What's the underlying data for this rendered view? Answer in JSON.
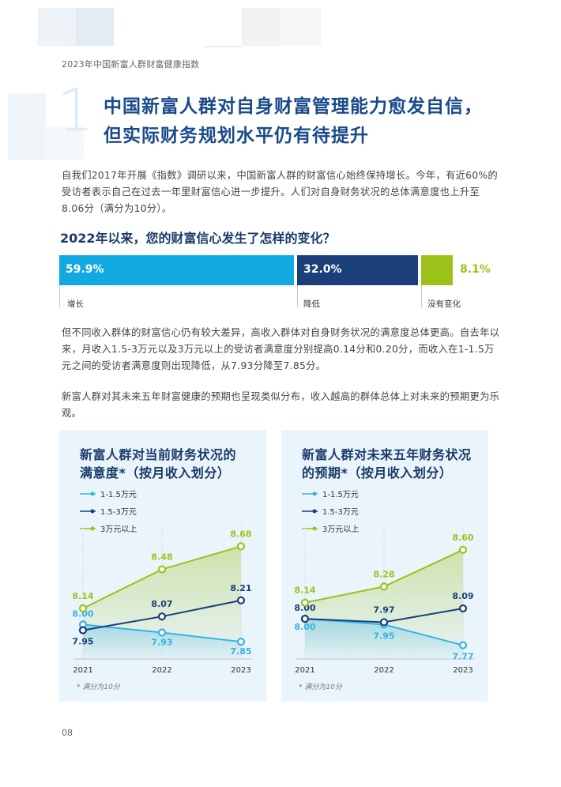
{
  "header": "2023年中国新富人群财富健康指数",
  "section_number": "1",
  "title_lines": [
    "中国新富人群对自身财富管理能力愈发自信，",
    "但实际财务规划水平仍有待提升"
  ],
  "paragraphs": [
    "自我们2017年开展《指数》调研以来，中国新富人群的财富信心始终保持增长。今年，有近60%的受访者表示自己在过去一年里财富信心进一步提升。人们对自身财务状况的总体满意度也上升至8.06分（满分为10分）。",
    "但不同收入群体的财富信心仍有较大差异，高收入群体对自身财务状况的满意度总体更高。自去年以来，月收入1.5-3万元以及3万元以上的受访者满意度分别提高0.14分和0.20分，而收入在1-1.5万元之间的受访者满意度则出现降低，从7.93分降至7.85分。",
    "新富人群对其未来五年财富健康的预期也呈现类似分布，收入越高的群体总体上对未来的预期更为乐观。"
  ],
  "confidence": {
    "question": "2022年以来，您的财富信心发生了怎样的变化？",
    "segments": [
      {
        "value": 59.9,
        "display": "59.9%",
        "label": "增长",
        "color": "#12a8e2"
      },
      {
        "value": 32.0,
        "display": "32.0%",
        "label": "降低",
        "color": "#1a3f7a"
      },
      {
        "value": 8.1,
        "display": "8.1%",
        "label": "没有变化",
        "color": "#9cc21a"
      }
    ]
  },
  "chart_data": [
    {
      "type": "line",
      "title_lines": [
        "新富人群对当前财务状况的",
        "满意度*（按月收入划分）"
      ],
      "categories": [
        "2021",
        "2022",
        "2023"
      ],
      "series": [
        {
          "name": "1-1.5万元",
          "values": [
            8.0,
            7.93,
            7.85
          ],
          "labels": [
            "8.00",
            "7.93",
            "7.85"
          ],
          "color": "#35b3e6"
        },
        {
          "name": "1.5-3万元",
          "values": [
            7.95,
            8.07,
            8.21
          ],
          "labels": [
            "7.95",
            "8.07",
            "8.21"
          ],
          "color": "#1a3f7a"
        },
        {
          "name": "3万元以上",
          "values": [
            8.14,
            8.48,
            8.68
          ],
          "labels": [
            "8.14",
            "8.48",
            "8.68"
          ],
          "color": "#9cc21a"
        }
      ],
      "ylim": [
        7.7,
        8.8
      ],
      "footnote": "* 满分为10分"
    },
    {
      "type": "line",
      "title_lines": [
        "新富人群对未来五年财务状况",
        "的预期*（按月收入划分）"
      ],
      "categories": [
        "2021",
        "2022",
        "2023"
      ],
      "series": [
        {
          "name": "1-1.5万元",
          "values": [
            8.0,
            7.95,
            7.77
          ],
          "labels": [
            "8.00",
            "7.95",
            "7.77"
          ],
          "color": "#35b3e6"
        },
        {
          "name": "1.5-3万元",
          "values": [
            8.0,
            7.97,
            8.09
          ],
          "labels": [
            "8.00",
            "7.97",
            "8.09"
          ],
          "color": "#1a3f7a"
        },
        {
          "name": "3万元以上",
          "values": [
            8.14,
            8.28,
            8.6
          ],
          "labels": [
            "8.14",
            "8.28",
            "8.60"
          ],
          "color": "#9cc21a"
        }
      ],
      "ylim": [
        7.65,
        8.75
      ],
      "footnote": "* 满分为10分"
    }
  ],
  "page_number": "08"
}
